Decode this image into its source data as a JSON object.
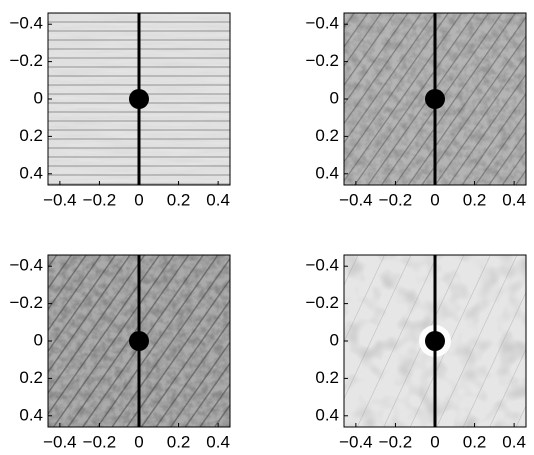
{
  "chart_data": [
    {
      "type": "image",
      "xlim": [
        -0.46,
        0.46
      ],
      "ylim": [
        -0.46,
        0.46
      ],
      "y_inverted": true,
      "xticks": [
        {
          "value": -0.4,
          "label": "−0.4"
        },
        {
          "value": -0.2,
          "label": "−0.2"
        },
        0,
        0.2,
        0.4
      ],
      "yticks": [
        {
          "value": -0.4,
          "label": "−0.4"
        },
        {
          "value": -0.2,
          "label": "−0.2"
        },
        0,
        0.2,
        0.4
      ]
    },
    {
      "type": "image",
      "xlim": [
        -0.46,
        0.46
      ],
      "ylim": [
        -0.46,
        0.46
      ],
      "y_inverted": true,
      "xticks": [
        {
          "value": -0.4,
          "label": "−0.4"
        },
        {
          "value": -0.2,
          "label": "−0.2"
        },
        0,
        0.2,
        0.4
      ],
      "yticks": [
        {
          "value": -0.4,
          "label": "−0.4"
        },
        {
          "value": -0.2,
          "label": "−0.2"
        },
        0,
        0.2,
        0.4
      ]
    },
    {
      "type": "image",
      "xlim": [
        -0.46,
        0.46
      ],
      "ylim": [
        -0.46,
        0.46
      ],
      "y_inverted": true,
      "xticks": [
        {
          "value": -0.4,
          "label": "−0.4"
        },
        {
          "value": -0.2,
          "label": "−0.2"
        },
        0,
        0.2,
        0.4
      ],
      "yticks": [
        {
          "value": -0.4,
          "label": "−0.4"
        },
        {
          "value": -0.2,
          "label": "−0.2"
        },
        0,
        0.2,
        0.4
      ]
    },
    {
      "type": "image",
      "xlim": [
        -0.46,
        0.46
      ],
      "ylim": [
        -0.46,
        0.46
      ],
      "y_inverted": true,
      "xticks": [
        {
          "value": -0.4,
          "label": "−0.4"
        },
        {
          "value": -0.2,
          "label": "−0.2"
        },
        0,
        0.2,
        0.4
      ],
      "yticks": [
        {
          "value": -0.4,
          "label": "−0.4"
        },
        {
          "value": -0.2,
          "label": "−0.2"
        },
        0,
        0.2,
        0.4
      ]
    }
  ]
}
